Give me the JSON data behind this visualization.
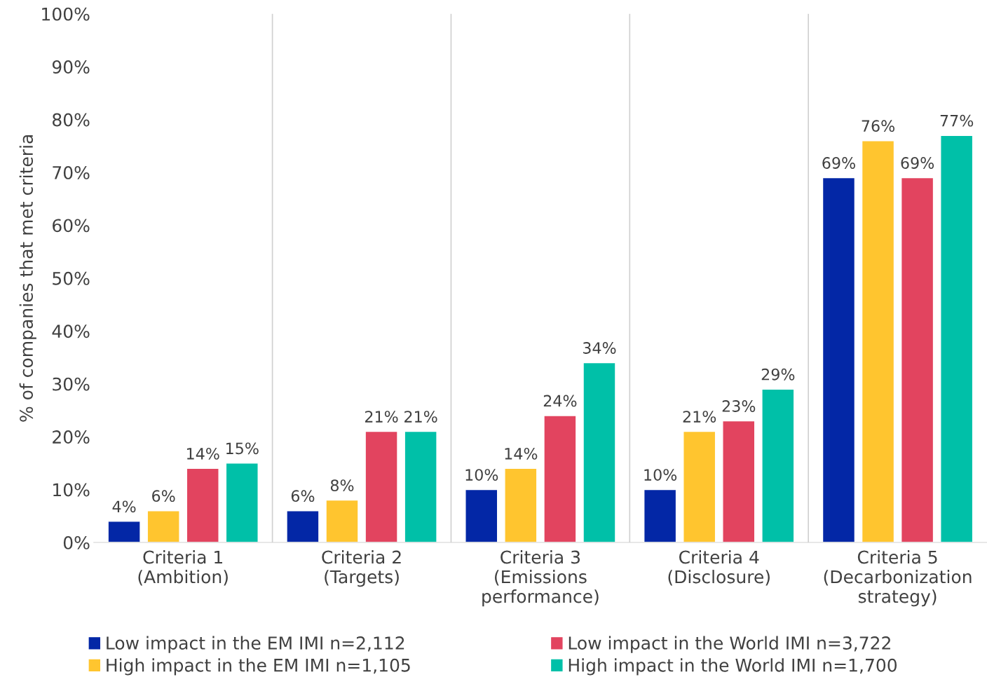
{
  "chart_data": {
    "type": "bar",
    "ylabel": "% of companies that met criteria",
    "categories": [
      "Criteria 1\n(Ambition)",
      "Criteria 2\n(Targets)",
      "Criteria 3\n(Emissions\nperformance)",
      "Criteria 4\n(Disclosure)",
      "Criteria 5\n(Decarbonization\nstrategy)"
    ],
    "series": [
      {
        "name": "Low impact in the EM IMI n=2,112",
        "color": "#0327a6",
        "values": [
          4,
          6,
          10,
          10,
          69
        ],
        "value_labels": [
          "4%",
          "6%",
          "10%",
          "10%",
          "69%"
        ]
      },
      {
        "name": "High impact in the EM IMI n=1,105",
        "color": "#ffc52f",
        "values": [
          6,
          8,
          14,
          21,
          76
        ],
        "value_labels": [
          "6%",
          "8%",
          "14%",
          "21%",
          "76%"
        ]
      },
      {
        "name": "Low impact in the World IMI n=3,722",
        "color": "#e2445f",
        "values": [
          14,
          21,
          24,
          23,
          69
        ],
        "value_labels": [
          "14%",
          "21%",
          "24%",
          "23%",
          "69%"
        ]
      },
      {
        "name": "High impact in the World IMI n=1,700",
        "color": "#00c0a8",
        "values": [
          15,
          21,
          34,
          29,
          77
        ],
        "value_labels": [
          "15%",
          "21%",
          "34%",
          "29%",
          "77%"
        ]
      }
    ],
    "ylim": [
      0,
      100
    ],
    "yticks": [
      {
        "value": 0,
        "label": "0%"
      },
      {
        "value": 10,
        "label": "10%"
      },
      {
        "value": 20,
        "label": "20%"
      },
      {
        "value": 30,
        "label": "30%"
      },
      {
        "value": 40,
        "label": "40%"
      },
      {
        "value": 50,
        "label": "50%"
      },
      {
        "value": 60,
        "label": "60%"
      },
      {
        "value": 70,
        "label": "70%"
      },
      {
        "value": 80,
        "label": "80%"
      },
      {
        "value": 90,
        "label": "90%"
      },
      {
        "value": 100,
        "label": "100%"
      }
    ],
    "grid": "x",
    "legend": "bottom"
  }
}
